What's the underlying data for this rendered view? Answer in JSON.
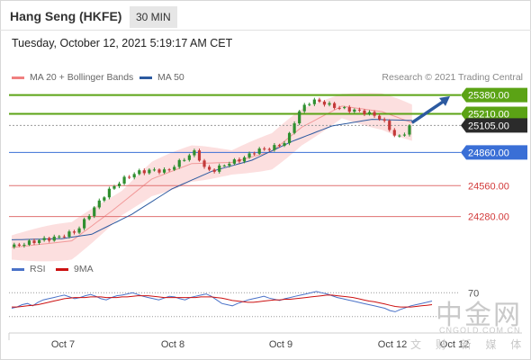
{
  "header": {
    "instrument": "Hang Seng (HKFE)",
    "timeframe": "30 MIN",
    "datetime": "Tuesday, October 12, 2021 5:19:17 AM CET"
  },
  "legend": {
    "items": [
      {
        "label": "MA 20 + Bollinger Bands",
        "color": "#f08080"
      },
      {
        "label": "MA 50",
        "color": "#2c5aa0"
      }
    ],
    "credit": "Research © 2021 Trading Central"
  },
  "rsi_legend": {
    "items": [
      {
        "label": "RSI",
        "color": "#4a72c8"
      },
      {
        "label": "9MA",
        "color": "#cc1111"
      }
    ]
  },
  "watermark": {
    "brand": "中金网",
    "url": "CNGOLD.COM.CN",
    "sub": "文 财 新 媒 体"
  },
  "chart_data": [
    {
      "type": "candlestick",
      "panel": "price",
      "x_labels": [
        "Oct 7",
        "Oct 8",
        "Oct 9",
        "Oct 12",
        "Oct 12"
      ],
      "ylim": [
        24000,
        25450
      ],
      "close_path": [
        {
          "t": 0,
          "v": 24005
        },
        {
          "t": 3,
          "v": 24040
        },
        {
          "t": 6,
          "v": 24070
        },
        {
          "t": 9,
          "v": 24090
        },
        {
          "t": 13,
          "v": 24150
        },
        {
          "t": 16,
          "v": 24330
        },
        {
          "t": 19,
          "v": 24500
        },
        {
          "t": 22,
          "v": 24610
        },
        {
          "t": 25,
          "v": 24680
        },
        {
          "t": 28,
          "v": 24700
        },
        {
          "t": 31,
          "v": 24690
        },
        {
          "t": 34,
          "v": 24790
        },
        {
          "t": 37,
          "v": 24880
        },
        {
          "t": 38,
          "v": 24730
        },
        {
          "t": 40,
          "v": 24690
        },
        {
          "t": 43,
          "v": 24760
        },
        {
          "t": 46,
          "v": 24800
        },
        {
          "t": 49,
          "v": 24880
        },
        {
          "t": 52,
          "v": 24900
        },
        {
          "t": 55,
          "v": 24960
        },
        {
          "t": 57,
          "v": 25200
        },
        {
          "t": 59,
          "v": 25310
        },
        {
          "t": 61,
          "v": 25330
        },
        {
          "t": 64,
          "v": 25280
        },
        {
          "t": 67,
          "v": 25250
        },
        {
          "t": 70,
          "v": 25230
        },
        {
          "t": 73,
          "v": 25190
        },
        {
          "t": 75,
          "v": 25110
        },
        {
          "t": 77,
          "v": 24980
        },
        {
          "t": 79,
          "v": 25060
        },
        {
          "t": 80,
          "v": 25130
        }
      ],
      "bollinger_center": [
        {
          "t": 0,
          "v": 24000
        },
        {
          "t": 12,
          "v": 24060
        },
        {
          "t": 20,
          "v": 24330
        },
        {
          "t": 28,
          "v": 24620
        },
        {
          "t": 36,
          "v": 24760
        },
        {
          "t": 44,
          "v": 24770
        },
        {
          "t": 52,
          "v": 24870
        },
        {
          "t": 58,
          "v": 25090
        },
        {
          "t": 66,
          "v": 25280
        },
        {
          "t": 74,
          "v": 25230
        },
        {
          "t": 80,
          "v": 25130
        }
      ],
      "ma50": [
        {
          "t": 0,
          "v": 24070
        },
        {
          "t": 10,
          "v": 24080
        },
        {
          "t": 16,
          "v": 24120
        },
        {
          "t": 24,
          "v": 24300
        },
        {
          "t": 32,
          "v": 24530
        },
        {
          "t": 40,
          "v": 24690
        },
        {
          "t": 48,
          "v": 24790
        },
        {
          "t": 56,
          "v": 24960
        },
        {
          "t": 64,
          "v": 25100
        },
        {
          "t": 72,
          "v": 25160
        },
        {
          "t": 80,
          "v": 25150
        }
      ],
      "levels": [
        {
          "value": 25380,
          "label": "25380.00",
          "kind": "resistance",
          "color": "#5ba315"
        },
        {
          "value": 25210,
          "label": "25210.00",
          "kind": "resistance",
          "color": "#5ba315"
        },
        {
          "value": 25105,
          "label": "25105.00",
          "kind": "current",
          "color": "#333333"
        },
        {
          "value": 24860,
          "label": "24860.00",
          "kind": "pivot",
          "color": "#3a6fd6"
        },
        {
          "value": 24560,
          "label": "24560.00",
          "kind": "support",
          "color": "#e07070"
        },
        {
          "value": 24280,
          "label": "24280.00",
          "kind": "support",
          "color": "#e07070"
        }
      ],
      "arrow": {
        "from": {
          "t": 80,
          "v": 25130
        },
        "to": {
          "t": 84,
          "v": 25370
        },
        "color": "#2c5aa0"
      }
    },
    {
      "type": "line",
      "panel": "rsi",
      "ylim": [
        10,
        90
      ],
      "y_ticks": [
        "70"
      ],
      "series": [
        {
          "name": "RSI",
          "color": "#4a72c8",
          "values": [
            44,
            46,
            50,
            52,
            48,
            54,
            58,
            60,
            62,
            64,
            66,
            63,
            60,
            62,
            65,
            67,
            64,
            60,
            58,
            62,
            65,
            66,
            68,
            70,
            67,
            64,
            62,
            60,
            58,
            61,
            64,
            63,
            60,
            58,
            62,
            64,
            66,
            68,
            64,
            58,
            52,
            50,
            48,
            52,
            55,
            58,
            60,
            62,
            64,
            61,
            59,
            57,
            60,
            62,
            64,
            66,
            68,
            70,
            72,
            70,
            68,
            65,
            62,
            60,
            58,
            56,
            54,
            52,
            50,
            48,
            46,
            44,
            40,
            38,
            42,
            45,
            48,
            50,
            52,
            54,
            56
          ]
        },
        {
          "name": "9MA",
          "color": "#cc1111",
          "values": [
            46,
            46,
            47,
            48,
            49,
            50,
            52,
            54,
            56,
            58,
            60,
            61,
            62,
            62,
            62,
            63,
            63,
            63,
            62,
            62,
            62,
            63,
            63,
            64,
            65,
            65,
            65,
            64,
            63,
            62,
            62,
            62,
            62,
            62,
            62,
            62,
            63,
            63,
            63,
            62,
            61,
            59,
            57,
            56,
            55,
            54,
            54,
            55,
            56,
            57,
            58,
            58,
            59,
            59,
            60,
            61,
            62,
            63,
            64,
            65,
            66,
            66,
            65,
            64,
            63,
            62,
            60,
            58,
            56,
            55,
            53,
            51,
            49,
            47,
            46,
            46,
            46,
            47,
            48,
            49,
            50
          ]
        }
      ]
    }
  ]
}
